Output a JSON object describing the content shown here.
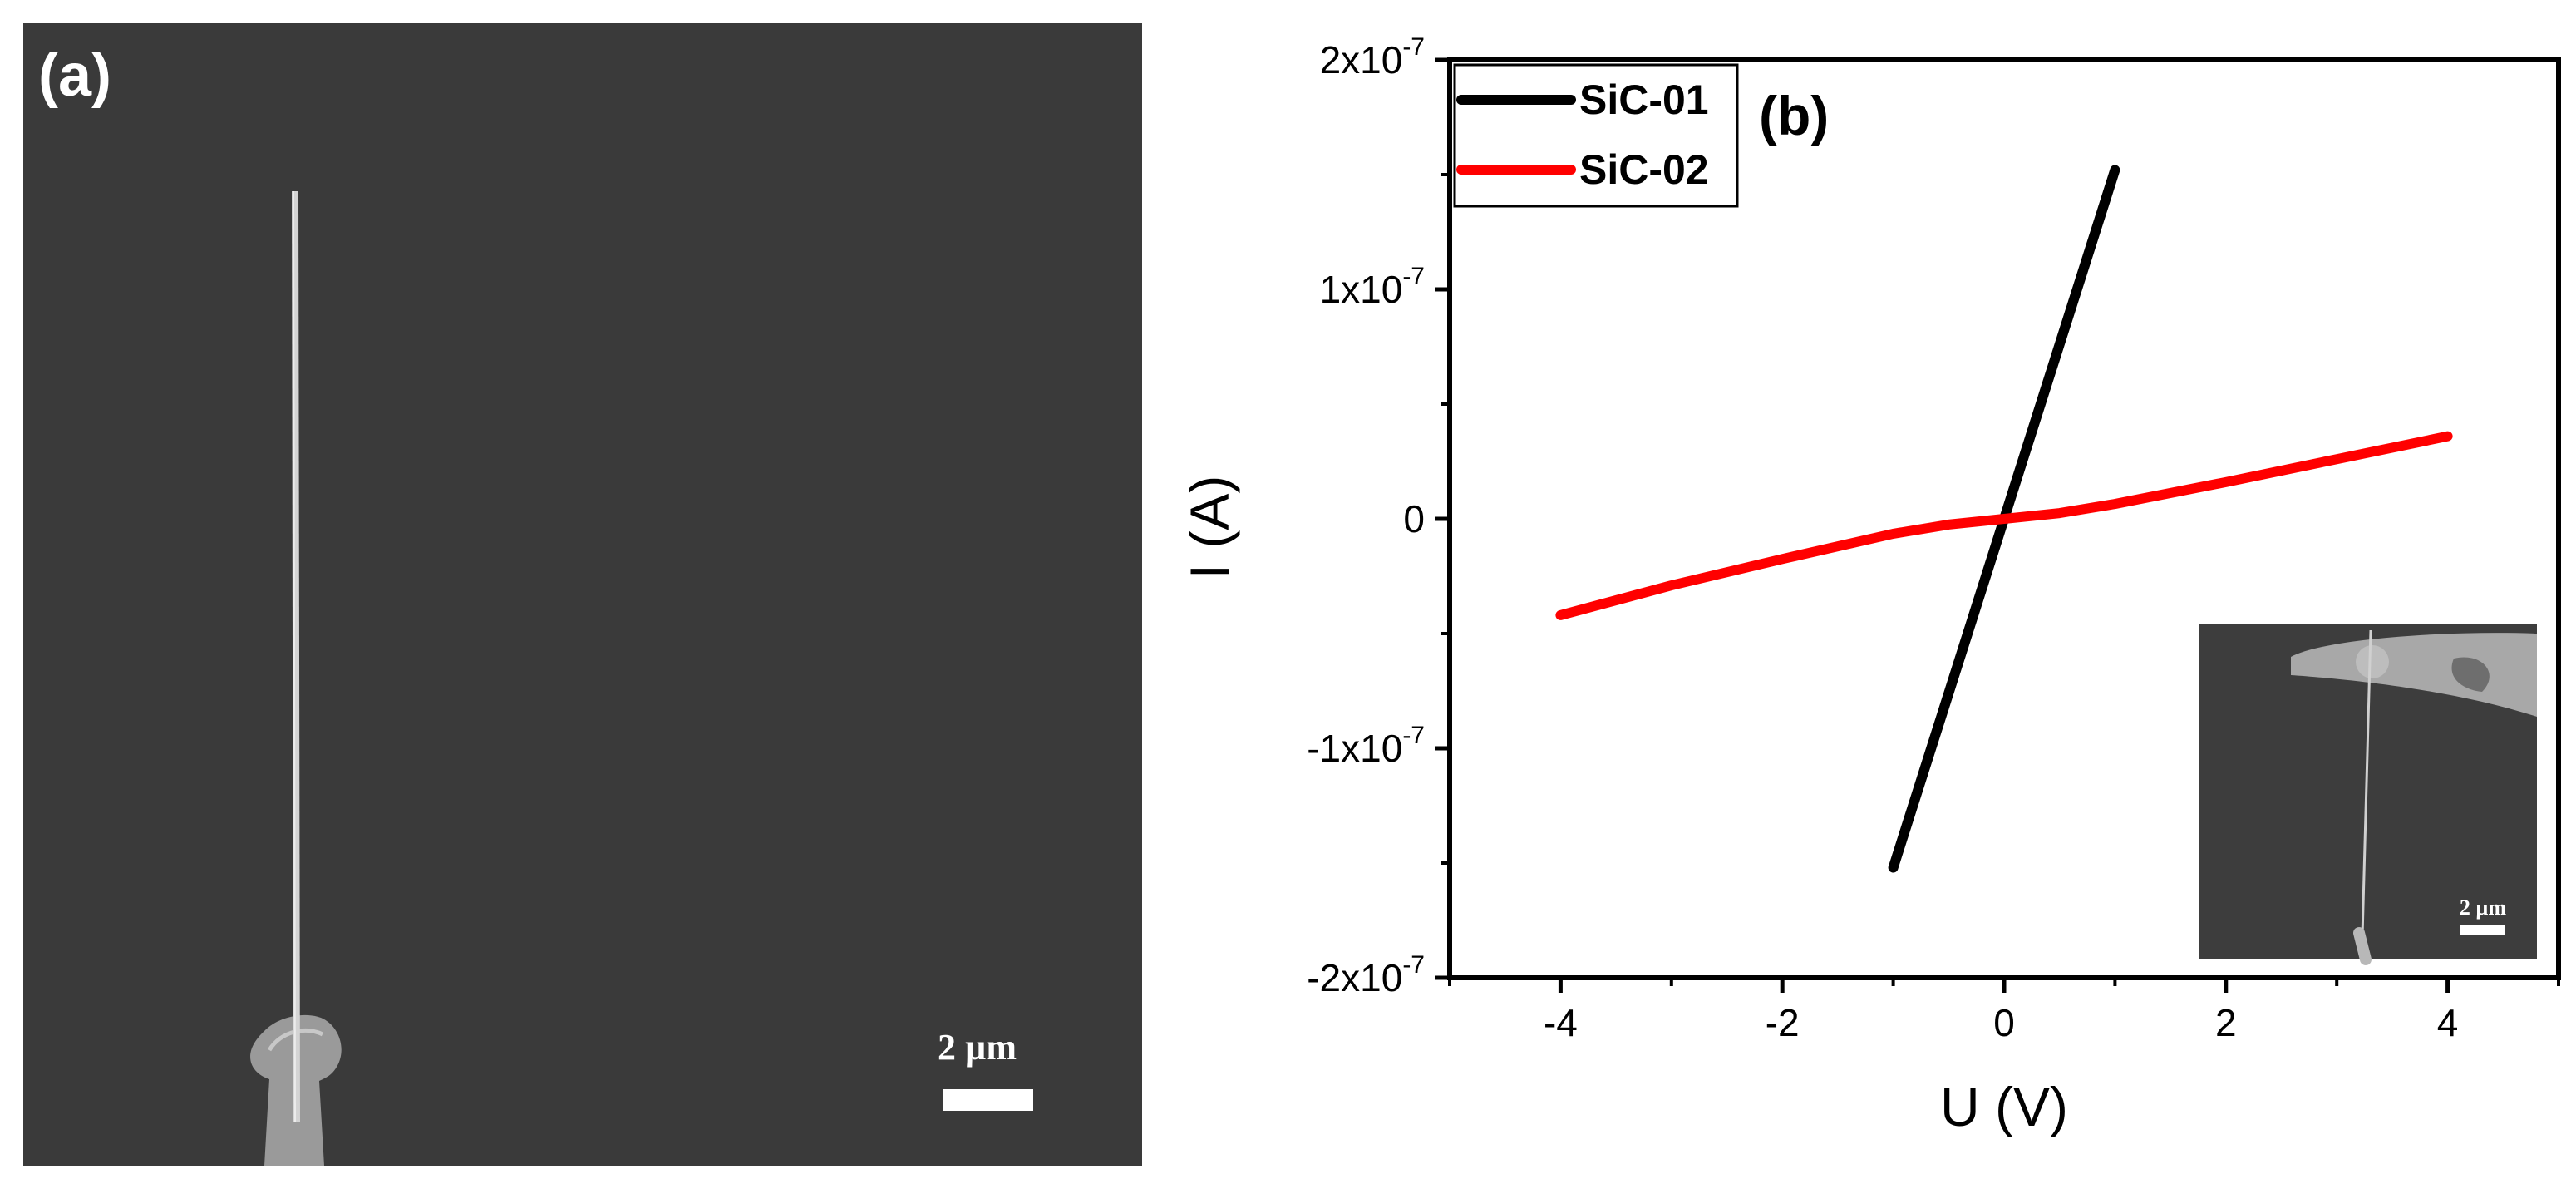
{
  "panel_a": {
    "label": "(a)",
    "scale_bar_label": "2 µm"
  },
  "chart_data": {
    "type": "line",
    "panel_label": "(b)",
    "xlabel": "U (V)",
    "ylabel": "I (A)",
    "xlim": [
      -5,
      5
    ],
    "ylim": [
      -2e-07,
      2e-07
    ],
    "x_ticks": [
      -4,
      -2,
      0,
      2,
      4
    ],
    "y_tick_labels": [
      {
        "value": 2e-07,
        "base": "2x10",
        "exp": "-7"
      },
      {
        "value": 1e-07,
        "base": "1x10",
        "exp": "-7"
      },
      {
        "value": 0,
        "base": "0",
        "exp": ""
      },
      {
        "value": -1e-07,
        "base": "-1x10",
        "exp": "-7"
      },
      {
        "value": -2e-07,
        "base": "-2x10",
        "exp": "-7"
      }
    ],
    "legend_position": "top-left",
    "series": [
      {
        "name": "SiC-01",
        "color": "#000000",
        "x": [
          -1,
          1
        ],
        "y": [
          -1.52e-07,
          1.52e-07
        ]
      },
      {
        "name": "SiC-02",
        "color": "#ff0000",
        "x": [
          -4,
          -3,
          -2,
          -1,
          -0.5,
          0,
          0.5,
          1,
          2,
          3,
          4
        ],
        "y": [
          -4.2e-08,
          -2.9e-08,
          -1.75e-08,
          -6.5e-09,
          -2.5e-09,
          0,
          2.5e-09,
          6.5e-09,
          1.6e-08,
          2.6e-08,
          3.6e-08
        ]
      }
    ],
    "inset": {
      "scale_bar_label": "2 µm"
    }
  }
}
